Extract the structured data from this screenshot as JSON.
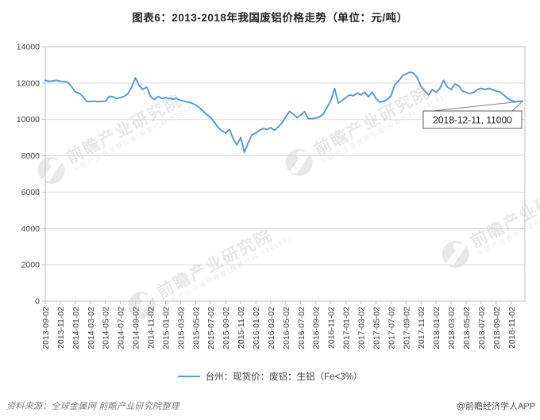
{
  "title": "图表6：2013-2018年我国废铝价格走势（单位：元/吨）",
  "legend": {
    "label": "台州：现货价：废铝：生铝（Fe<3%）"
  },
  "annotation": {
    "label": "2018-12-11, 11000"
  },
  "footer": {
    "source": "资料来源：全球金属网  前瞻产业研究院整理",
    "credit": "@前瞻经济学人APP"
  },
  "watermark": {
    "brand": "前瞻产业研究院",
    "tagline": "中国产业咨询领导者(股票代码:839599)"
  },
  "colors": {
    "line": "#5B9BD5",
    "grid": "#D9D9D9",
    "border": "#BFBFBF",
    "tick_text": "#404040",
    "annotation_border": "#595959",
    "watermark": "#D9D9D9"
  },
  "chart_data": {
    "type": "line",
    "title": "图表6：2013-2018年我国废铝价格走势（单位：元/吨）",
    "xlabel": "",
    "ylabel": "元/吨",
    "ylim": [
      0,
      14000
    ],
    "y_ticks": [
      0,
      2000,
      4000,
      6000,
      8000,
      10000,
      12000,
      14000
    ],
    "grid": "horizontal",
    "legend_position": "bottom",
    "x_start": "2013-09-02",
    "x_end": "2018-12-11",
    "sampling": "biweekly estimates read from plotted line",
    "x_tick_labels": [
      "2013-09-02",
      "2013-11-02",
      "2014-01-02",
      "2014-03-02",
      "2014-05-02",
      "2014-07-02",
      "2014-09-02",
      "2014-11-02",
      "2015-01-02",
      "2015-03-02",
      "2015-05-02",
      "2015-07-02",
      "2015-09-02",
      "2015-11-02",
      "2016-01-02",
      "2016-03-02",
      "2016-05-02",
      "2016-07-02",
      "2016-09-02",
      "2016-11-02",
      "2017-01-02",
      "2017-03-02",
      "2017-05-02",
      "2017-07-02",
      "2017-09-02",
      "2017-11-02",
      "2018-01-02",
      "2018-03-02",
      "2018-05-02",
      "2018-07-02",
      "2018-09-02",
      "2018-11-02"
    ],
    "points_per_tick": 4,
    "series": [
      {
        "name": "台州：现货价：废铝：生铝（Fe<3%）",
        "color": "#5B9BD5",
        "values": [
          12150,
          12100,
          12120,
          12150,
          12100,
          12080,
          12050,
          11800,
          11500,
          11450,
          11270,
          11000,
          10980,
          11000,
          10980,
          10990,
          11000,
          11270,
          11250,
          11150,
          11200,
          11270,
          11420,
          11780,
          12300,
          11850,
          11650,
          11780,
          11270,
          11090,
          11270,
          11150,
          11200,
          11150,
          11120,
          11150,
          11050,
          11000,
          10950,
          10900,
          10800,
          10650,
          10450,
          10270,
          10100,
          9850,
          9550,
          9380,
          9240,
          9450,
          8950,
          8600,
          9000,
          8200,
          8700,
          9160,
          9240,
          9400,
          9500,
          9450,
          9550,
          9400,
          9600,
          9800,
          10150,
          10450,
          10300,
          10100,
          10250,
          10430,
          10050,
          10040,
          10080,
          10150,
          10300,
          10650,
          11050,
          11700,
          10900,
          11050,
          11200,
          11350,
          11300,
          11450,
          11350,
          11500,
          11250,
          11500,
          11150,
          10950,
          11000,
          11100,
          11300,
          11900,
          12100,
          12400,
          12500,
          12600,
          12550,
          12300,
          11800,
          11560,
          11350,
          11640,
          11490,
          11710,
          12150,
          11780,
          11640,
          11950,
          11850,
          11560,
          11490,
          11420,
          11490,
          11640,
          11710,
          11640,
          11710,
          11640,
          11560,
          11500,
          11350,
          11170,
          11050,
          10980,
          10990,
          11000
        ]
      }
    ],
    "annotation": {
      "text": "2018-12-11, 11000",
      "x": "2018-12-11",
      "y": 11000
    }
  }
}
